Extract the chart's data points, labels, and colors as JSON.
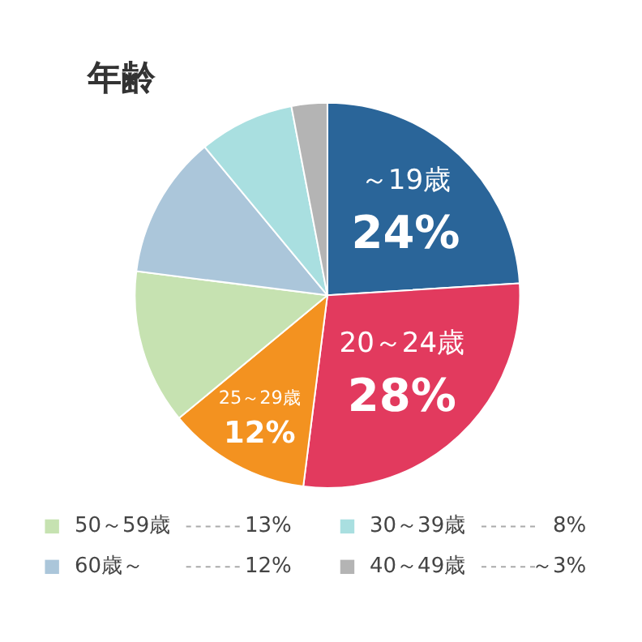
{
  "chart_data": {
    "type": "pie",
    "title": "年齢",
    "categories": [
      "～19歳",
      "20～24歳",
      "25～29歳",
      "50～59歳",
      "60歳～",
      "30～39歳",
      "40～49歳"
    ],
    "values": [
      24,
      28,
      12,
      13,
      12,
      8,
      3
    ],
    "value_labels": [
      "24%",
      "28%",
      "12%",
      "13%",
      "12%",
      "8%",
      "～3%"
    ],
    "colors": [
      "#2a6599",
      "#e23a5e",
      "#f39220",
      "#c6e2b1",
      "#abc6da",
      "#a9dfe0",
      "#b4b4b4"
    ],
    "legend": "bottom"
  }
}
